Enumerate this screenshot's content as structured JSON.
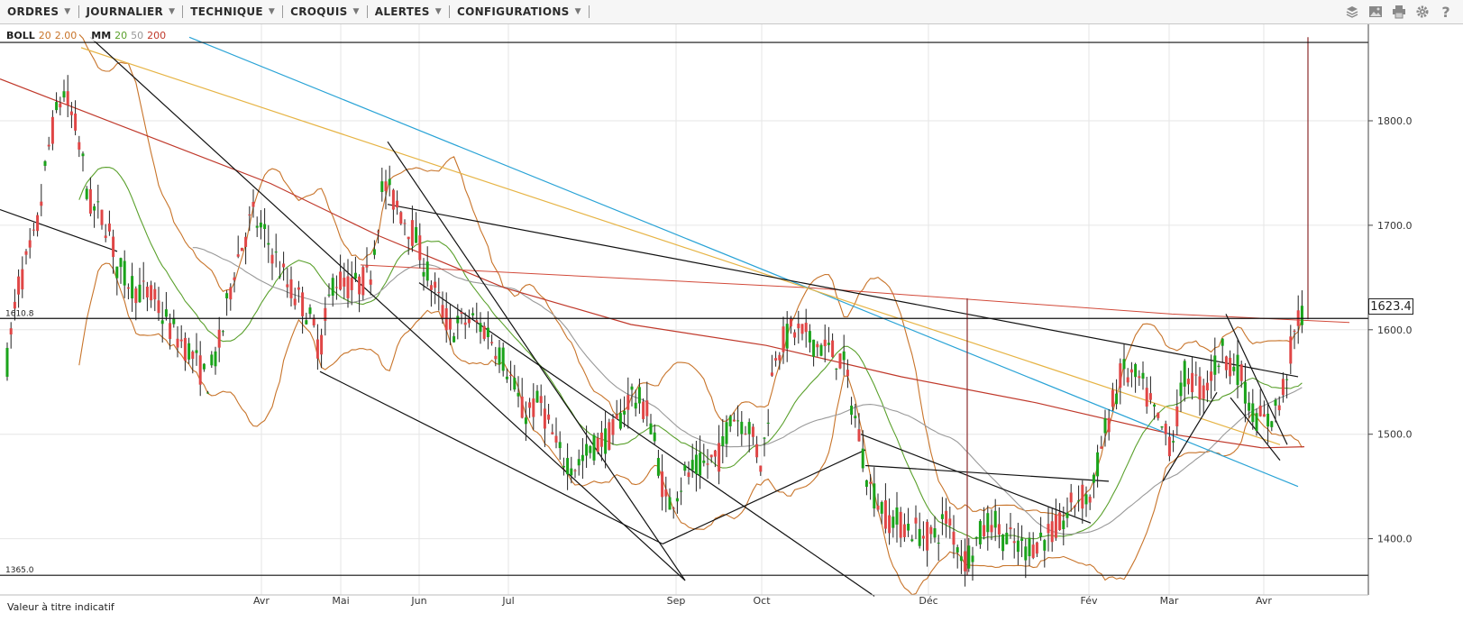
{
  "toolbar": {
    "menu": [
      {
        "label": "ORDRES",
        "name": "menu-ordres"
      },
      {
        "label": "JOURNALIER",
        "name": "menu-journalier"
      },
      {
        "label": "TECHNIQUE",
        "name": "menu-technique"
      },
      {
        "label": "CROQUIS",
        "name": "menu-croquis"
      },
      {
        "label": "ALERTES",
        "name": "menu-alertes"
      },
      {
        "label": "CONFIGURATIONS",
        "name": "menu-configurations"
      }
    ],
    "tools": [
      "layers-icon",
      "image-icon",
      "print-icon",
      "gear-icon",
      "help-icon"
    ]
  },
  "legend": {
    "boll": {
      "name": "BOLL",
      "period": "20",
      "dev": "2.00",
      "color": "#c8742a"
    },
    "mm": {
      "name": "MM",
      "p1": "20",
      "p2": "50",
      "p3": "200",
      "colors": [
        "#5aa02c",
        "#999999",
        "#c0392b"
      ]
    }
  },
  "footer_note": "Valeur à titre indicatif",
  "chart_data": {
    "type": "candlestick",
    "yaxis": {
      "ticks": [
        1800.0,
        1700.0,
        1600.0,
        1500.0,
        1400.0
      ],
      "range": [
        1345,
        1880
      ]
    },
    "xaxis": {
      "ticks": [
        "Avr",
        "Mai",
        "Jun",
        "Jul",
        "Sep",
        "Oct",
        "Déc",
        "Fév",
        "Mar",
        "Avr"
      ]
    },
    "last_price": "1623.4",
    "levels": [
      {
        "label": "1610.8",
        "value": 1610.8
      },
      {
        "label": "1365.0",
        "value": 1365.0
      },
      {
        "value": 1875
      }
    ],
    "colors": {
      "up": "#1aa31a",
      "down": "#e04646"
    }
  }
}
